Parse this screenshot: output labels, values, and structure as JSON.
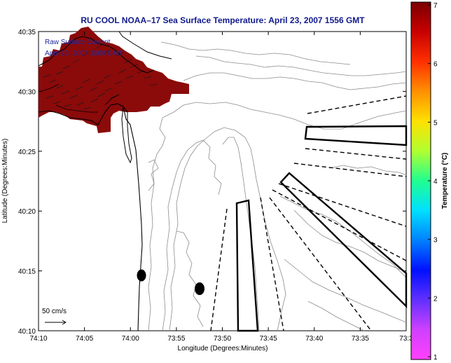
{
  "title": "RU COOL  NOAA–17  Sea Surface Temperature:  April 23, 2007 1556 GMT",
  "annotation": {
    "line1": "Raw Surface Current",
    "line2": "April 23, 2007 1500 GMT"
  },
  "scale": {
    "label": "50 cm/s"
  },
  "axes": {
    "xlabel": "Longitude (Degrees:Minutes)",
    "ylabel": "Latitude (Degrees:Minutes)",
    "xticks": [
      "74:10",
      "74:05",
      "74:00",
      "73:55",
      "73:50",
      "73:45",
      "73:40",
      "73:35",
      "73:3"
    ],
    "yticks": [
      "40:35",
      "40:30",
      "40:25",
      "40:20",
      "40:15",
      "40:10"
    ]
  },
  "colorbar": {
    "label": "Temperature (°C)",
    "ticks": [
      "7",
      "6",
      "5",
      "4",
      "3",
      "2",
      "1"
    ],
    "colors": [
      "#7a0000",
      "#c80000",
      "#ff3000",
      "#ff9000",
      "#ffe000",
      "#b0ff30",
      "#20ff90",
      "#00e0ff",
      "#0080ff",
      "#0010ff",
      "#6030ff",
      "#d040ff",
      "#ff40ff"
    ]
  },
  "colors": {
    "land_sst": "#8b0a0a",
    "title": "#101a8c",
    "contour": "#8c8c8c",
    "outline": "#000000"
  }
}
